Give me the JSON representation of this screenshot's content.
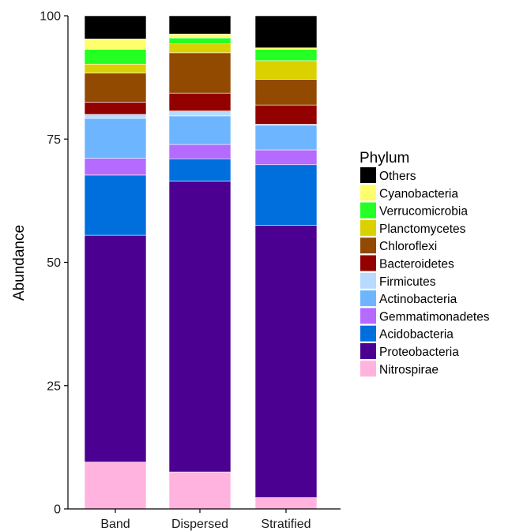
{
  "chart_data": {
    "type": "bar",
    "stacked": true,
    "ylabel": "Abundance",
    "xlabel": "",
    "ylim": [
      0,
      100
    ],
    "yticks": [
      0,
      25,
      50,
      75,
      100
    ],
    "categories": [
      "Band",
      "Dispersed",
      "Stratified"
    ],
    "legend": {
      "title": "Phylum",
      "placement": "right",
      "order": [
        "Others",
        "Cyanobacteria",
        "Verrucomicrobia",
        "Planctomycetes",
        "Chloroflexi",
        "Bacteroidetes",
        "Firmicutes",
        "Actinobacteria",
        "Gemmatimonadetes",
        "Acidobacteria",
        "Proteobacteria",
        "Nitrospirae"
      ]
    },
    "series": [
      {
        "name": "Nitrospirae",
        "color": "#ffb3de",
        "values": [
          9.5,
          7.5,
          2.3
        ]
      },
      {
        "name": "Proteobacteria",
        "color": "#4b0092",
        "values": [
          46.0,
          59.0,
          55.2
        ]
      },
      {
        "name": "Acidobacteria",
        "color": "#006fde",
        "values": [
          12.2,
          4.5,
          12.3
        ]
      },
      {
        "name": "Gemmatimonadetes",
        "color": "#b56bff",
        "values": [
          3.4,
          2.9,
          3.0
        ]
      },
      {
        "name": "Actinobacteria",
        "color": "#6db6ff",
        "values": [
          8.1,
          5.8,
          5.0
        ]
      },
      {
        "name": "Firmicutes",
        "color": "#b6dbff",
        "values": [
          0.8,
          1.0,
          0.2
        ]
      },
      {
        "name": "Bacteroidetes",
        "color": "#920000",
        "values": [
          2.5,
          3.6,
          3.9
        ]
      },
      {
        "name": "Chloroflexi",
        "color": "#924900",
        "values": [
          5.9,
          8.2,
          5.2
        ]
      },
      {
        "name": "Planctomycetes",
        "color": "#dbd100",
        "values": [
          1.8,
          1.8,
          3.8
        ]
      },
      {
        "name": "Verrucomicrobia",
        "color": "#24ff24",
        "values": [
          3.0,
          1.2,
          2.3
        ]
      },
      {
        "name": "Cyanobacteria",
        "color": "#ffff6d",
        "values": [
          2.1,
          0.8,
          0.3
        ]
      },
      {
        "name": "Others",
        "color": "#000000",
        "values": [
          4.7,
          3.7,
          6.5
        ]
      }
    ],
    "grid": false
  }
}
